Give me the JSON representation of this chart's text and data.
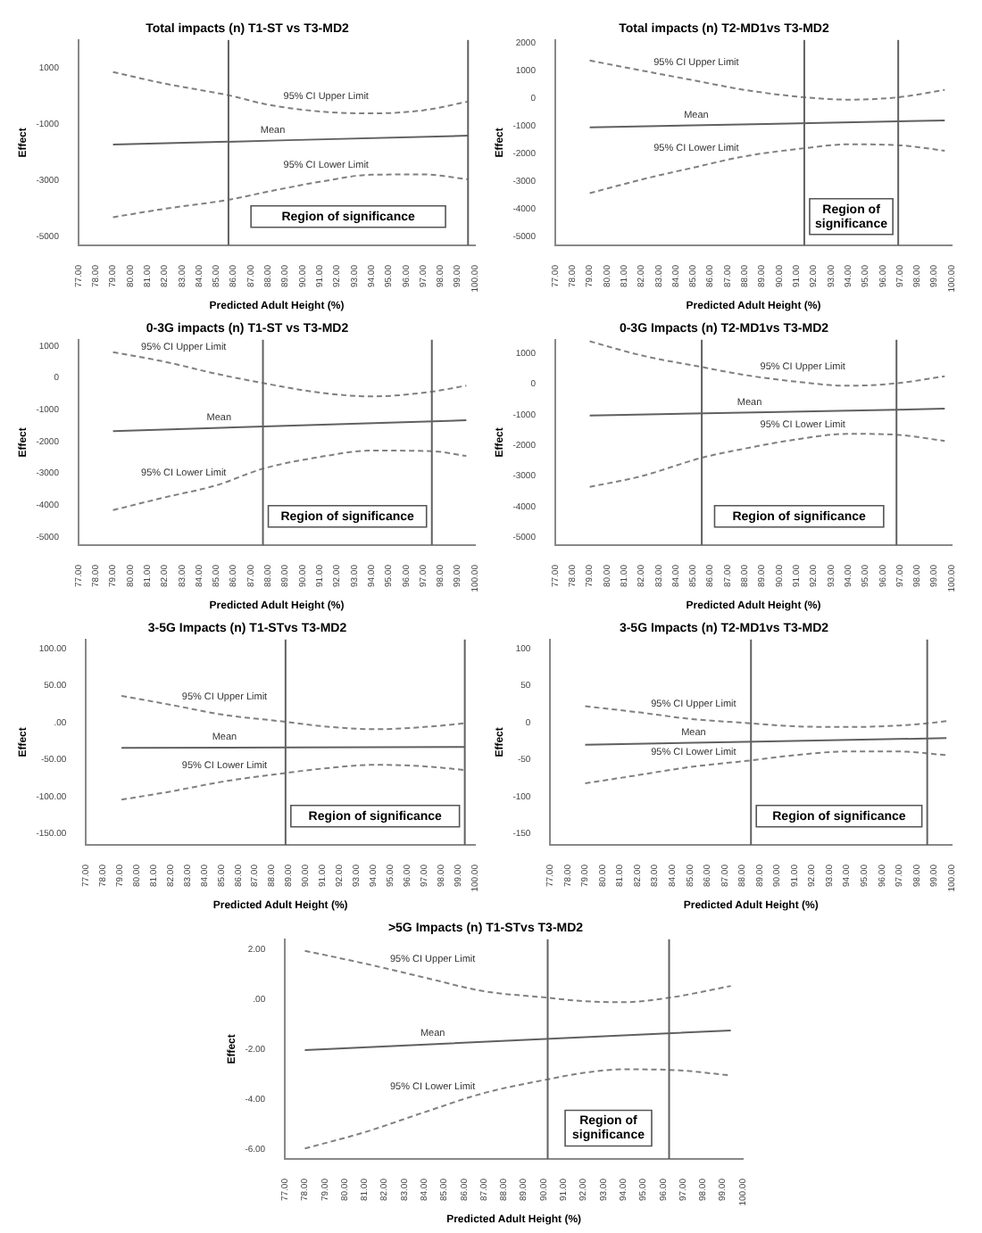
{
  "chart_data": [
    {
      "type": "line",
      "title": "Total impacts (n) T1-ST vs T3-MD2",
      "xlabel": "Predicted Adult Height (%)",
      "ylabel": "Effect",
      "marker": "none",
      "xlim": [
        77,
        100
      ],
      "ylim": [
        -5300,
        2000
      ],
      "yticks": [
        1000,
        -1000,
        -3000,
        -5000
      ],
      "xticks": [
        {
          "value": 77,
          "label": "77.00"
        },
        {
          "value": 78,
          "label": "78.00"
        },
        {
          "value": 79,
          "label": "79.00"
        },
        {
          "value": 80,
          "label": "80.00"
        },
        {
          "value": 81,
          "label": "81.00"
        },
        {
          "value": 82,
          "label": "82.00"
        },
        {
          "value": 83,
          "label": "83.00"
        },
        {
          "value": 84,
          "label": "84.00"
        },
        {
          "value": 85,
          "label": "85.00"
        },
        {
          "value": 86,
          "label": "86.00"
        },
        {
          "value": 87,
          "label": "87.00"
        },
        {
          "value": 88,
          "label": "88.00"
        },
        {
          "value": 89,
          "label": "89.00"
        },
        {
          "value": 90,
          "label": "90.00"
        },
        {
          "value": 91,
          "label": "91.00"
        },
        {
          "value": 92,
          "label": "92.00"
        },
        {
          "value": 93,
          "label": "93.00"
        },
        {
          "value": 94,
          "label": "94.00"
        },
        {
          "value": 95,
          "label": "95.00"
        },
        {
          "value": 96,
          "label": "96.00"
        },
        {
          "value": 97,
          "label": "97.00"
        },
        {
          "value": 98,
          "label": "98.00"
        },
        {
          "value": 99,
          "label": "99.00"
        },
        {
          "value": 100,
          "label": "100.00"
        }
      ],
      "series": [
        {
          "name": "95% CI Upper Limit",
          "color": "#808080",
          "line_style": "dashed",
          "x": [
            79,
            82,
            85.7,
            88,
            91,
            94,
            97,
            99.6
          ],
          "values": [
            860,
            450,
            35,
            -300,
            -540,
            -610,
            -500,
            -190
          ]
        },
        {
          "name": "Mean",
          "color": "#606060",
          "line_style": "solid",
          "x": [
            79,
            99.6
          ],
          "values": [
            -1720,
            -1400
          ]
        },
        {
          "name": "95% CI Lower Limit",
          "color": "#808080",
          "line_style": "dashed",
          "x": [
            79,
            82,
            85.7,
            88,
            91,
            94,
            97,
            99.6
          ],
          "values": [
            -4300,
            -4000,
            -3680,
            -3390,
            -3040,
            -2790,
            -2780,
            -2950
          ]
        }
      ],
      "ref_lines": [
        {
          "axis": "x",
          "value": 85.7,
          "color": "#606060"
        },
        {
          "axis": "x",
          "value": 99.6,
          "color": "#606060"
        }
      ],
      "annotations": [
        "Region of significance"
      ]
    },
    {
      "type": "line",
      "title": "Total impacts (n) T2-MD1vs T3-MD2",
      "xlabel": "Predicted Adult Height (%)",
      "ylabel": "Effect",
      "marker": "none",
      "xlim": [
        77,
        100
      ],
      "ylim": [
        -5300,
        2100
      ],
      "yticks": [
        2000,
        1000,
        0,
        -1000,
        -2000,
        -3000,
        -4000,
        -5000
      ],
      "xticks": [
        {
          "value": 77,
          "label": "77.00"
        },
        {
          "value": 78,
          "label": "78.00"
        },
        {
          "value": 79,
          "label": "79.00"
        },
        {
          "value": 80,
          "label": "80.00"
        },
        {
          "value": 81,
          "label": "81.00"
        },
        {
          "value": 82,
          "label": "82.00"
        },
        {
          "value": 83,
          "label": "83.00"
        },
        {
          "value": 84,
          "label": "84.00"
        },
        {
          "value": 85,
          "label": "85.00"
        },
        {
          "value": 86,
          "label": "86.00"
        },
        {
          "value": 87,
          "label": "87.00"
        },
        {
          "value": 88,
          "label": "88.00"
        },
        {
          "value": 89,
          "label": "89.00"
        },
        {
          "value": 90,
          "label": "90.00"
        },
        {
          "value": 91,
          "label": "91.00"
        },
        {
          "value": 92,
          "label": "92.00"
        },
        {
          "value": 93,
          "label": "93.00"
        },
        {
          "value": 94,
          "label": "94.00"
        },
        {
          "value": 95,
          "label": "95.00"
        },
        {
          "value": 96,
          "label": "96.00"
        },
        {
          "value": 97,
          "label": "97.00"
        },
        {
          "value": 98,
          "label": "98.00"
        },
        {
          "value": 99,
          "label": "99.00"
        },
        {
          "value": 100,
          "label": "100.00"
        }
      ],
      "series": [
        {
          "name": "95% CI Upper Limit",
          "color": "#808080",
          "line_style": "dashed",
          "x": [
            79,
            82,
            85,
            88,
            91.45,
            94,
            96.9,
            99.6
          ],
          "values": [
            1360,
            1000,
            650,
            300,
            35,
            -50,
            35,
            300
          ]
        },
        {
          "name": "Mean",
          "color": "#606060",
          "line_style": "solid",
          "x": [
            79,
            99.6
          ],
          "values": [
            -1050,
            -800
          ]
        },
        {
          "name": "95% CI Lower Limit",
          "color": "#808080",
          "line_style": "dashed",
          "x": [
            79,
            82,
            85,
            88,
            91.45,
            94,
            96.9,
            99.6
          ],
          "values": [
            -3420,
            -2930,
            -2500,
            -2090,
            -1800,
            -1660,
            -1690,
            -1890
          ]
        }
      ],
      "ref_lines": [
        {
          "axis": "x",
          "value": 91.45,
          "color": "#606060"
        },
        {
          "axis": "x",
          "value": 96.9,
          "color": "#606060"
        }
      ],
      "annotations": [
        "Region of significance"
      ]
    },
    {
      "type": "line",
      "title": "0-3G impacts (n) T1-ST vs T3-MD2",
      "xlabel": "Predicted Adult Height (%)",
      "ylabel": "Effect",
      "marker": "none",
      "xlim": [
        77,
        100
      ],
      "ylim": [
        -5250,
        1200
      ],
      "yticks": [
        1000,
        0,
        -1000,
        -2000,
        -3000,
        -4000,
        -5000
      ],
      "xticks": [
        {
          "value": 77,
          "label": "77.00"
        },
        {
          "value": 78,
          "label": "78.00"
        },
        {
          "value": 79,
          "label": "79.00"
        },
        {
          "value": 80,
          "label": "80.00"
        },
        {
          "value": 81,
          "label": "81.00"
        },
        {
          "value": 82,
          "label": "82.00"
        },
        {
          "value": 83,
          "label": "83.00"
        },
        {
          "value": 84,
          "label": "84.00"
        },
        {
          "value": 85,
          "label": "85.00"
        },
        {
          "value": 86,
          "label": "86.00"
        },
        {
          "value": 87,
          "label": "87.00"
        },
        {
          "value": 88,
          "label": "88.00"
        },
        {
          "value": 89,
          "label": "89.00"
        },
        {
          "value": 90,
          "label": "90.00"
        },
        {
          "value": 91,
          "label": "91.00"
        },
        {
          "value": 92,
          "label": "92.00"
        },
        {
          "value": 93,
          "label": "93.00"
        },
        {
          "value": 94,
          "label": "94.00"
        },
        {
          "value": 95,
          "label": "95.00"
        },
        {
          "value": 96,
          "label": "96.00"
        },
        {
          "value": 97,
          "label": "97.00"
        },
        {
          "value": 98,
          "label": "98.00"
        },
        {
          "value": 99,
          "label": "99.00"
        },
        {
          "value": 100,
          "label": "100.00"
        }
      ],
      "series": [
        {
          "name": "95% CI Upper Limit",
          "color": "#808080",
          "line_style": "dashed",
          "x": [
            79,
            82,
            85,
            87.7,
            91,
            94,
            97.5,
            99.5
          ],
          "values": [
            810,
            510,
            130,
            -160,
            -460,
            -580,
            -430,
            -240
          ]
        },
        {
          "name": "Mean",
          "color": "#606060",
          "line_style": "solid",
          "x": [
            79,
            99.5
          ],
          "values": [
            -1670,
            -1330
          ]
        },
        {
          "name": "95% CI Lower Limit",
          "color": "#808080",
          "line_style": "dashed",
          "x": [
            79,
            82,
            85,
            87.7,
            91,
            94,
            97.5,
            99.5
          ],
          "values": [
            -4150,
            -3750,
            -3370,
            -2850,
            -2480,
            -2280,
            -2300,
            -2450
          ]
        }
      ],
      "ref_lines": [
        {
          "axis": "x",
          "value": 87.7,
          "color": "#606060"
        },
        {
          "axis": "x",
          "value": 97.5,
          "color": "#606060"
        }
      ],
      "annotations": [
        "Region of significance"
      ]
    },
    {
      "type": "line",
      "title": "0-3G Impacts (n) T2-MD1vs T3-MD2",
      "xlabel": "Predicted Adult Height (%)",
      "ylabel": "Effect",
      "marker": "none",
      "xlim": [
        77,
        100
      ],
      "ylim": [
        -5250,
        1450
      ],
      "yticks": [
        1000,
        0,
        -1000,
        -2000,
        -3000,
        -4000,
        -5000
      ],
      "xticks": [
        {
          "value": 77,
          "label": "77.00"
        },
        {
          "value": 78,
          "label": "78.00"
        },
        {
          "value": 79,
          "label": "79.00"
        },
        {
          "value": 80,
          "label": "80.00"
        },
        {
          "value": 81,
          "label": "81.00"
        },
        {
          "value": 82,
          "label": "82.00"
        },
        {
          "value": 83,
          "label": "83.00"
        },
        {
          "value": 84,
          "label": "84.00"
        },
        {
          "value": 85,
          "label": "85.00"
        },
        {
          "value": 86,
          "label": "86.00"
        },
        {
          "value": 87,
          "label": "87.00"
        },
        {
          "value": 88,
          "label": "88.00"
        },
        {
          "value": 89,
          "label": "89.00"
        },
        {
          "value": 90,
          "label": "90.00"
        },
        {
          "value": 91,
          "label": "91.00"
        },
        {
          "value": 92,
          "label": "92.00"
        },
        {
          "value": 93,
          "label": "93.00"
        },
        {
          "value": 94,
          "label": "94.00"
        },
        {
          "value": 95,
          "label": "95.00"
        },
        {
          "value": 96,
          "label": "96.00"
        },
        {
          "value": 97,
          "label": "97.00"
        },
        {
          "value": 98,
          "label": "98.00"
        },
        {
          "value": 99,
          "label": "99.00"
        },
        {
          "value": 100,
          "label": "100.00"
        }
      ],
      "series": [
        {
          "name": "95% CI Upper Limit",
          "color": "#808080",
          "line_style": "dashed",
          "x": [
            79,
            82,
            85.5,
            88,
            91,
            94,
            96.8,
            99.6
          ],
          "values": [
            1400,
            940,
            560,
            300,
            80,
            -50,
            30,
            260
          ]
        },
        {
          "name": "Mean",
          "color": "#606060",
          "line_style": "solid",
          "x": [
            79,
            99.6
          ],
          "values": [
            -1020,
            -800
          ]
        },
        {
          "name": "95% CI Lower Limit",
          "color": "#808080",
          "line_style": "dashed",
          "x": [
            79,
            82,
            85.5,
            88,
            91,
            94,
            96.8,
            99.6
          ],
          "values": [
            -3350,
            -3000,
            -2400,
            -2100,
            -1800,
            -1620,
            -1650,
            -1850
          ]
        }
      ],
      "ref_lines": [
        {
          "axis": "x",
          "value": 85.5,
          "color": "#606060"
        },
        {
          "axis": "x",
          "value": 96.8,
          "color": "#606060"
        }
      ],
      "annotations": [
        "Region of significance"
      ]
    },
    {
      "type": "line",
      "title": "3-5G Impacts (n) T1-STvs T3-MD2",
      "xlabel": "Predicted Adult Height (%)",
      "ylabel": "Effect",
      "marker": "none",
      "xlim": [
        77,
        100
      ],
      "ylim": [
        -165,
        112
      ],
      "yticks": [
        {
          "value": 100,
          "label": "100.00"
        },
        {
          "value": 50,
          "label": "50.00"
        },
        {
          "value": 0,
          "label": ".00"
        },
        {
          "value": -50,
          "label": "-50.00"
        },
        {
          "value": -100,
          "label": "-100.00"
        },
        {
          "value": -150,
          "label": "-150.00"
        }
      ],
      "xticks": [
        {
          "value": 77,
          "label": "77.00"
        },
        {
          "value": 78,
          "label": "78.00"
        },
        {
          "value": 79,
          "label": "79.00"
        },
        {
          "value": 80,
          "label": "80.00"
        },
        {
          "value": 81,
          "label": "81.00"
        },
        {
          "value": 82,
          "label": "82.00"
        },
        {
          "value": 83,
          "label": "83.00"
        },
        {
          "value": 84,
          "label": "84.00"
        },
        {
          "value": 85,
          "label": "85.00"
        },
        {
          "value": 86,
          "label": "86.00"
        },
        {
          "value": 87,
          "label": "87.00"
        },
        {
          "value": 88,
          "label": "88.00"
        },
        {
          "value": 89,
          "label": "89.00"
        },
        {
          "value": 90,
          "label": "90.00"
        },
        {
          "value": 91,
          "label": "91.00"
        },
        {
          "value": 92,
          "label": "92.00"
        },
        {
          "value": 93,
          "label": "93.00"
        },
        {
          "value": 94,
          "label": "94.00"
        },
        {
          "value": 95,
          "label": "95.00"
        },
        {
          "value": 96,
          "label": "96.00"
        },
        {
          "value": 97,
          "label": "97.00"
        },
        {
          "value": 98,
          "label": "98.00"
        },
        {
          "value": 99,
          "label": "99.00"
        },
        {
          "value": 100,
          "label": "100.00"
        }
      ],
      "series": [
        {
          "name": "95% CI Upper Limit",
          "color": "#808080",
          "line_style": "dashed",
          "x": [
            79.1,
            82,
            85,
            88.8,
            91,
            94,
            97,
            99.4
          ],
          "values": [
            36,
            24,
            11,
            1,
            -5,
            -9,
            -6,
            -1
          ]
        },
        {
          "name": "Mean",
          "color": "#606060",
          "line_style": "solid",
          "x": [
            79.1,
            99.4
          ],
          "values": [
            -34,
            -33
          ]
        },
        {
          "name": "95% CI Lower Limit",
          "color": "#808080",
          "line_style": "dashed",
          "x": [
            79.1,
            82,
            85,
            88.8,
            91,
            94,
            97,
            99.4
          ],
          "values": [
            -104,
            -93,
            -80,
            -68,
            -62,
            -57,
            -59,
            -64
          ]
        }
      ],
      "ref_lines": [
        {
          "axis": "x",
          "value": 88.8,
          "color": "#606060"
        },
        {
          "axis": "x",
          "value": 99.4,
          "color": "#606060"
        }
      ],
      "annotations": [
        "Region of significance"
      ]
    },
    {
      "type": "line",
      "title": "3-5G Impacts (n) T2-MD1vs T3-MD2",
      "xlabel": "Predicted Adult Height (%)",
      "ylabel": "Effect",
      "marker": "none",
      "xlim": [
        77,
        100
      ],
      "ylim": [
        -165,
        112
      ],
      "yticks": [
        100,
        50,
        0,
        -50,
        -100,
        -150
      ],
      "xticks": [
        {
          "value": 77,
          "label": "77.00"
        },
        {
          "value": 78,
          "label": "78.00"
        },
        {
          "value": 79,
          "label": "79.00"
        },
        {
          "value": 80,
          "label": "80.00"
        },
        {
          "value": 81,
          "label": "81.00"
        },
        {
          "value": 82,
          "label": "82.00"
        },
        {
          "value": 83,
          "label": "83.00"
        },
        {
          "value": 84,
          "label": "84.00"
        },
        {
          "value": 85,
          "label": "85.00"
        },
        {
          "value": 86,
          "label": "86.00"
        },
        {
          "value": 87,
          "label": "87.00"
        },
        {
          "value": 88,
          "label": "88.00"
        },
        {
          "value": 89,
          "label": "89.00"
        },
        {
          "value": 90,
          "label": "90.00"
        },
        {
          "value": 91,
          "label": "91.00"
        },
        {
          "value": 92,
          "label": "92.00"
        },
        {
          "value": 93,
          "label": "93.00"
        },
        {
          "value": 94,
          "label": "94.00"
        },
        {
          "value": 95,
          "label": "95.00"
        },
        {
          "value": 96,
          "label": "96.00"
        },
        {
          "value": 97,
          "label": "97.00"
        },
        {
          "value": 98,
          "label": "98.00"
        },
        {
          "value": 99,
          "label": "99.00"
        },
        {
          "value": 100,
          "label": "100.00"
        }
      ],
      "series": [
        {
          "name": "95% CI Upper Limit",
          "color": "#808080",
          "line_style": "dashed",
          "x": [
            79,
            82,
            85,
            88.5,
            91,
            94,
            97,
            98.6,
            99.7
          ],
          "values": [
            22,
            14,
            5,
            -1,
            -5,
            -6,
            -4,
            -1,
            2
          ]
        },
        {
          "name": "Mean",
          "color": "#606060",
          "line_style": "solid",
          "x": [
            79,
            99.7
          ],
          "values": [
            -30,
            -21
          ]
        },
        {
          "name": "95% CI Lower Limit",
          "color": "#808080",
          "line_style": "dashed",
          "x": [
            79,
            82,
            85,
            88.5,
            91,
            94,
            97,
            99.7
          ],
          "values": [
            -82,
            -71,
            -60,
            -51,
            -44,
            -39,
            -39,
            -44
          ]
        }
      ],
      "ref_lines": [
        {
          "axis": "x",
          "value": 88.5,
          "color": "#606060"
        },
        {
          "axis": "x",
          "value": 98.6,
          "color": "#606060"
        }
      ],
      "annotations": [
        "Region of significance"
      ]
    },
    {
      "type": "line",
      "title": ">5G Impacts (n) T1-STvs T3-MD2",
      "xlabel": "Predicted Adult Height (%)",
      "ylabel": "Effect",
      "marker": "none",
      "xlim": [
        77,
        100
      ],
      "ylim": [
        -6.4,
        2.4
      ],
      "yticks": [
        {
          "value": 2,
          "label": "2.00"
        },
        {
          "value": 0,
          "label": ".00"
        },
        {
          "value": -2,
          "label": "-2.00"
        },
        {
          "value": -4,
          "label": "-4.00"
        },
        {
          "value": -6,
          "label": "-6.00"
        }
      ],
      "xticks": [
        {
          "value": 77,
          "label": "77.00"
        },
        {
          "value": 78,
          "label": "78.00"
        },
        {
          "value": 79,
          "label": "79.00"
        },
        {
          "value": 80,
          "label": "80.00"
        },
        {
          "value": 81,
          "label": "81.00"
        },
        {
          "value": 82,
          "label": "82.00"
        },
        {
          "value": 83,
          "label": "83.00"
        },
        {
          "value": 84,
          "label": "84.00"
        },
        {
          "value": 85,
          "label": "85.00"
        },
        {
          "value": 86,
          "label": "86.00"
        },
        {
          "value": 87,
          "label": "87.00"
        },
        {
          "value": 88,
          "label": "88.00"
        },
        {
          "value": 89,
          "label": "89.00"
        },
        {
          "value": 90,
          "label": "90.00"
        },
        {
          "value": 91,
          "label": "91.00"
        },
        {
          "value": 92,
          "label": "92.00"
        },
        {
          "value": 93,
          "label": "93.00"
        },
        {
          "value": 94,
          "label": "94.00"
        },
        {
          "value": 95,
          "label": "95.00"
        },
        {
          "value": 96,
          "label": "96.00"
        },
        {
          "value": 97,
          "label": "97.00"
        },
        {
          "value": 98,
          "label": "98.00"
        },
        {
          "value": 99,
          "label": "99.00"
        },
        {
          "value": 100,
          "label": "100.00"
        }
      ],
      "series": [
        {
          "name": "95% CI Upper Limit",
          "color": "#808080",
          "line_style": "dashed",
          "x": [
            78,
            81,
            84,
            87,
            90.2,
            92,
            94,
            96.3,
            99.4
          ],
          "values": [
            1.94,
            1.43,
            0.87,
            0.32,
            0.06,
            -0.08,
            -0.12,
            0.06,
            0.53
          ]
        },
        {
          "name": "Mean",
          "color": "#606060",
          "line_style": "solid",
          "x": [
            78,
            99.4
          ],
          "values": [
            -2.04,
            -1.25
          ]
        },
        {
          "name": "95% CI Lower Limit",
          "color": "#808080",
          "line_style": "dashed",
          "x": [
            78,
            81,
            84,
            87,
            90.2,
            92,
            94,
            96.3,
            99.4
          ],
          "values": [
            -5.98,
            -5.33,
            -4.53,
            -3.76,
            -3.21,
            -2.95,
            -2.81,
            -2.83,
            -3.05
          ]
        }
      ],
      "ref_lines": [
        {
          "axis": "x",
          "value": 90.2,
          "color": "#606060"
        },
        {
          "axis": "x",
          "value": 96.3,
          "color": "#606060"
        }
      ],
      "annotations": [
        "Region of significance"
      ]
    }
  ]
}
